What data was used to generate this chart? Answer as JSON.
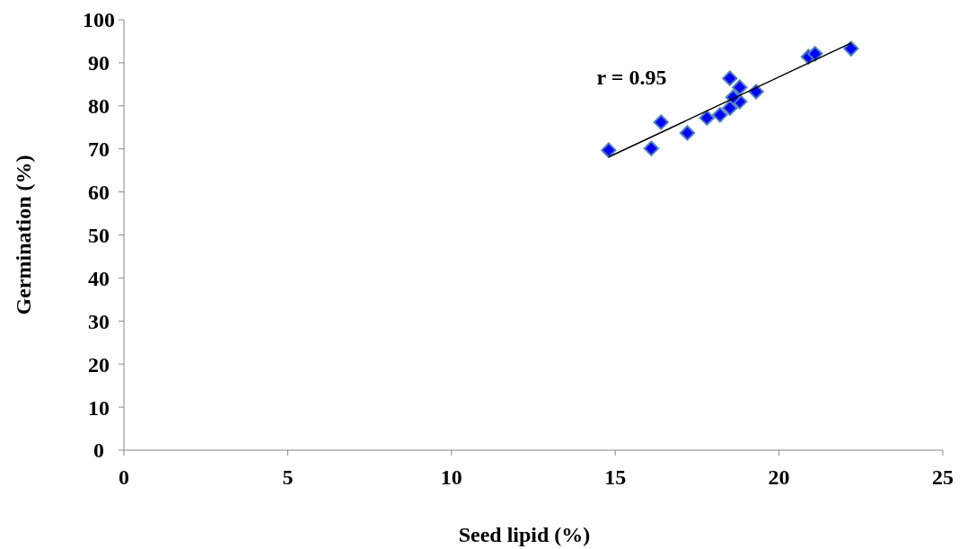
{
  "chart_data": {
    "type": "scatter",
    "xlabel": "Seed lipid (%)",
    "ylabel": "Germination (%)",
    "xlim": [
      0,
      25
    ],
    "xticks": [
      0,
      5,
      10,
      15,
      20,
      25
    ],
    "ylim": [
      0,
      100
    ],
    "yticks": [
      0,
      10,
      20,
      30,
      40,
      50,
      60,
      70,
      80,
      90,
      100
    ],
    "grid": false,
    "marker": "diamond",
    "annotations": [
      "r = 0.95"
    ],
    "series": [
      {
        "color": "#0000ff",
        "x": [
          14.8,
          16.1,
          16.4,
          17.2,
          17.8,
          18.2,
          18.5,
          18.8,
          18.6,
          18.5,
          18.8,
          19.3,
          20.9,
          21.1,
          22.2
        ],
        "values": [
          69.7,
          70.1,
          76.2,
          73.7,
          77.2,
          77.9,
          79.5,
          81.0,
          82.0,
          86.4,
          84.3,
          83.3,
          91.4,
          92.1,
          93.3
        ]
      },
      {
        "type": "line",
        "color": "#000000",
        "line_style": "solid",
        "marker": "none",
        "x": [
          14.8,
          22.2
        ],
        "values": [
          68.1,
          94.6
        ]
      }
    ]
  }
}
